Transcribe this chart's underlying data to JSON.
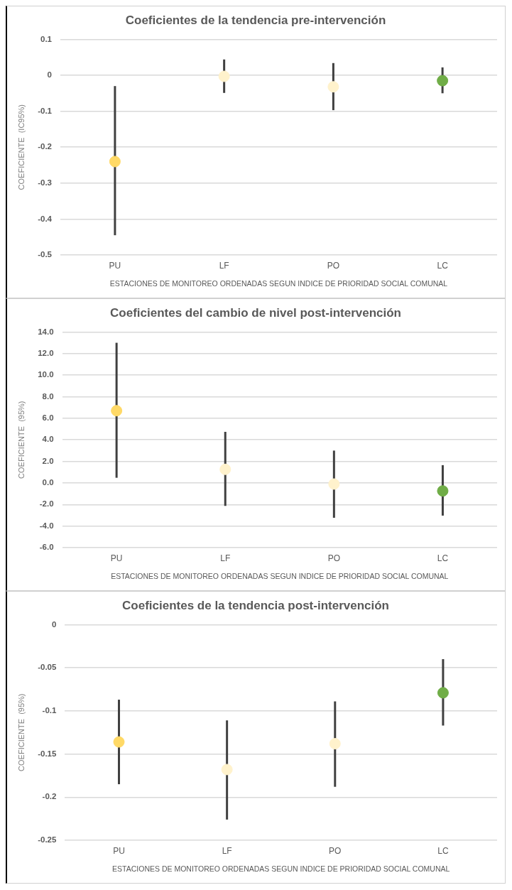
{
  "chart_data": [
    {
      "type": "scatter",
      "title": "Coeficientes de la tendencia pre-intervención",
      "xlabel": "ESTACIONES DE MONITOREO ORDENADAS SEGUN INDICE DE PRIORIDAD SOCIAL COMUNAL",
      "ylabel": "COEFICIENTE  (IC95%)",
      "categories": [
        "PU",
        "LF",
        "PO",
        "LC"
      ],
      "values": [
        -0.24,
        -0.003,
        -0.032,
        -0.015
      ],
      "colors": [
        "#ffd966",
        "#fff2cc",
        "#fff2cc",
        "#70ad47"
      ],
      "errors": [
        [
          -0.445,
          -0.03
        ],
        [
          -0.049,
          0.044
        ],
        [
          -0.097,
          0.034
        ],
        [
          -0.05,
          0.022
        ]
      ],
      "ylim": [
        -0.5,
        0.1
      ],
      "yticks": [
        -0.5,
        -0.4,
        -0.3,
        -0.2,
        -0.1,
        0,
        0.1
      ],
      "grid": "y",
      "marker": "circle",
      "legend": false
    },
    {
      "type": "scatter",
      "title": "Coeficientes del cambio de nivel post-intervención",
      "xlabel": "ESTACIONES DE MONITOREO ORDENADAS SEGUN INDICE DE PRIORIDAD SOCIAL COMUNAL",
      "ylabel": "COEFICIENTE  (95%)",
      "categories": [
        "PU",
        "LF",
        "PO",
        "LC"
      ],
      "values": [
        6.7,
        1.26,
        -0.1,
        -0.74
      ],
      "colors": [
        "#ffd966",
        "#fff2cc",
        "#fff2cc",
        "#70ad47"
      ],
      "errors": [
        [
          0.48,
          13.0
        ],
        [
          -2.13,
          4.74
        ],
        [
          -3.23,
          3.0
        ],
        [
          -3.03,
          1.65
        ]
      ],
      "ylim": [
        -6,
        14
      ],
      "yticks": [
        {
          "value": -6,
          "label": "-6.0"
        },
        {
          "value": -4,
          "label": "-4.0"
        },
        {
          "value": -2,
          "label": "-2.0"
        },
        {
          "value": 0,
          "label": "0.0"
        },
        {
          "value": 2,
          "label": "2.0"
        },
        {
          "value": 4,
          "label": "4.0"
        },
        {
          "value": 6,
          "label": "6.0"
        },
        {
          "value": 8,
          "label": "8.0"
        },
        {
          "value": 10,
          "label": "10.0"
        },
        {
          "value": 12,
          "label": "12.0"
        },
        {
          "value": 14,
          "label": "14.0"
        }
      ],
      "grid": "y",
      "marker": "circle",
      "legend": false
    },
    {
      "type": "scatter",
      "title": "Coeficientes de la tendencia post-intervención",
      "xlabel": "ESTACIONES DE MONITOREO ORDENADAS SEGUN INDICE DE PRIORIDAD SOCIAL COMUNAL",
      "ylabel": "COEFICIENTE  (95%)",
      "categories": [
        "PU",
        "LF",
        "PO",
        "LC"
      ],
      "values": [
        -0.136,
        -0.168,
        -0.138,
        -0.079
      ],
      "colors": [
        "#ffd966",
        "#fff2cc",
        "#fff2cc",
        "#70ad47"
      ],
      "errors": [
        [
          -0.185,
          -0.087
        ],
        [
          -0.226,
          -0.111
        ],
        [
          -0.188,
          -0.089
        ],
        [
          -0.117,
          -0.04
        ]
      ],
      "ylim": [
        -0.25,
        0
      ],
      "yticks": [
        -0.25,
        -0.2,
        -0.15,
        -0.1,
        -0.05,
        0
      ],
      "grid": "y",
      "marker": "circle",
      "legend": false
    }
  ]
}
